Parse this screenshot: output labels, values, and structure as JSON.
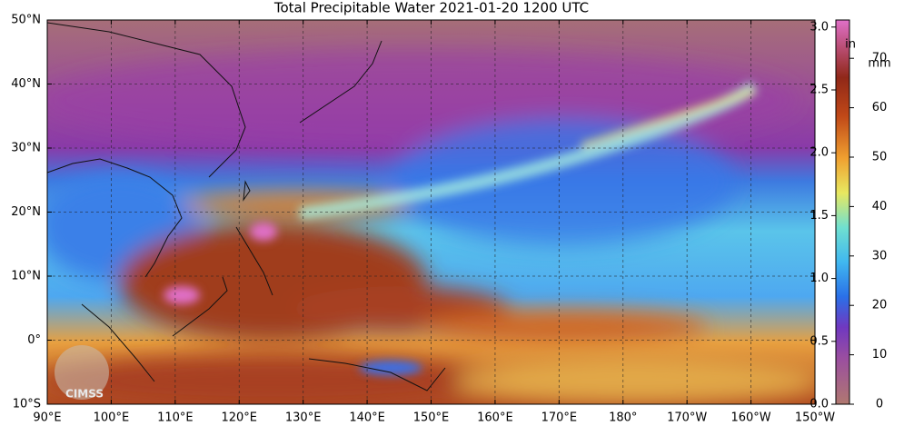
{
  "title": "Total Precipitable Water  2021-01-20 1200 UTC",
  "lat_labels": [
    "50°N",
    "40°N",
    "30°N",
    "20°N",
    "10°N",
    "0°",
    "10°S"
  ],
  "lon_labels": [
    "90°E",
    "100°E",
    "110°E",
    "120°E",
    "130°E",
    "140°E",
    "150°E",
    "160°E",
    "170°E",
    "180°",
    "170°W",
    "160°W",
    "150°W"
  ],
  "colorbar": {
    "in_unit": "in",
    "mm_unit": "mm",
    "in_ticks": [
      "0.0",
      "0.5",
      "1.0",
      "1.5",
      "2.0",
      "2.5",
      "3.0"
    ],
    "mm_ticks": [
      "0",
      "10",
      "20",
      "30",
      "40",
      "50",
      "60",
      "70"
    ]
  },
  "logo": "CIMSS"
}
